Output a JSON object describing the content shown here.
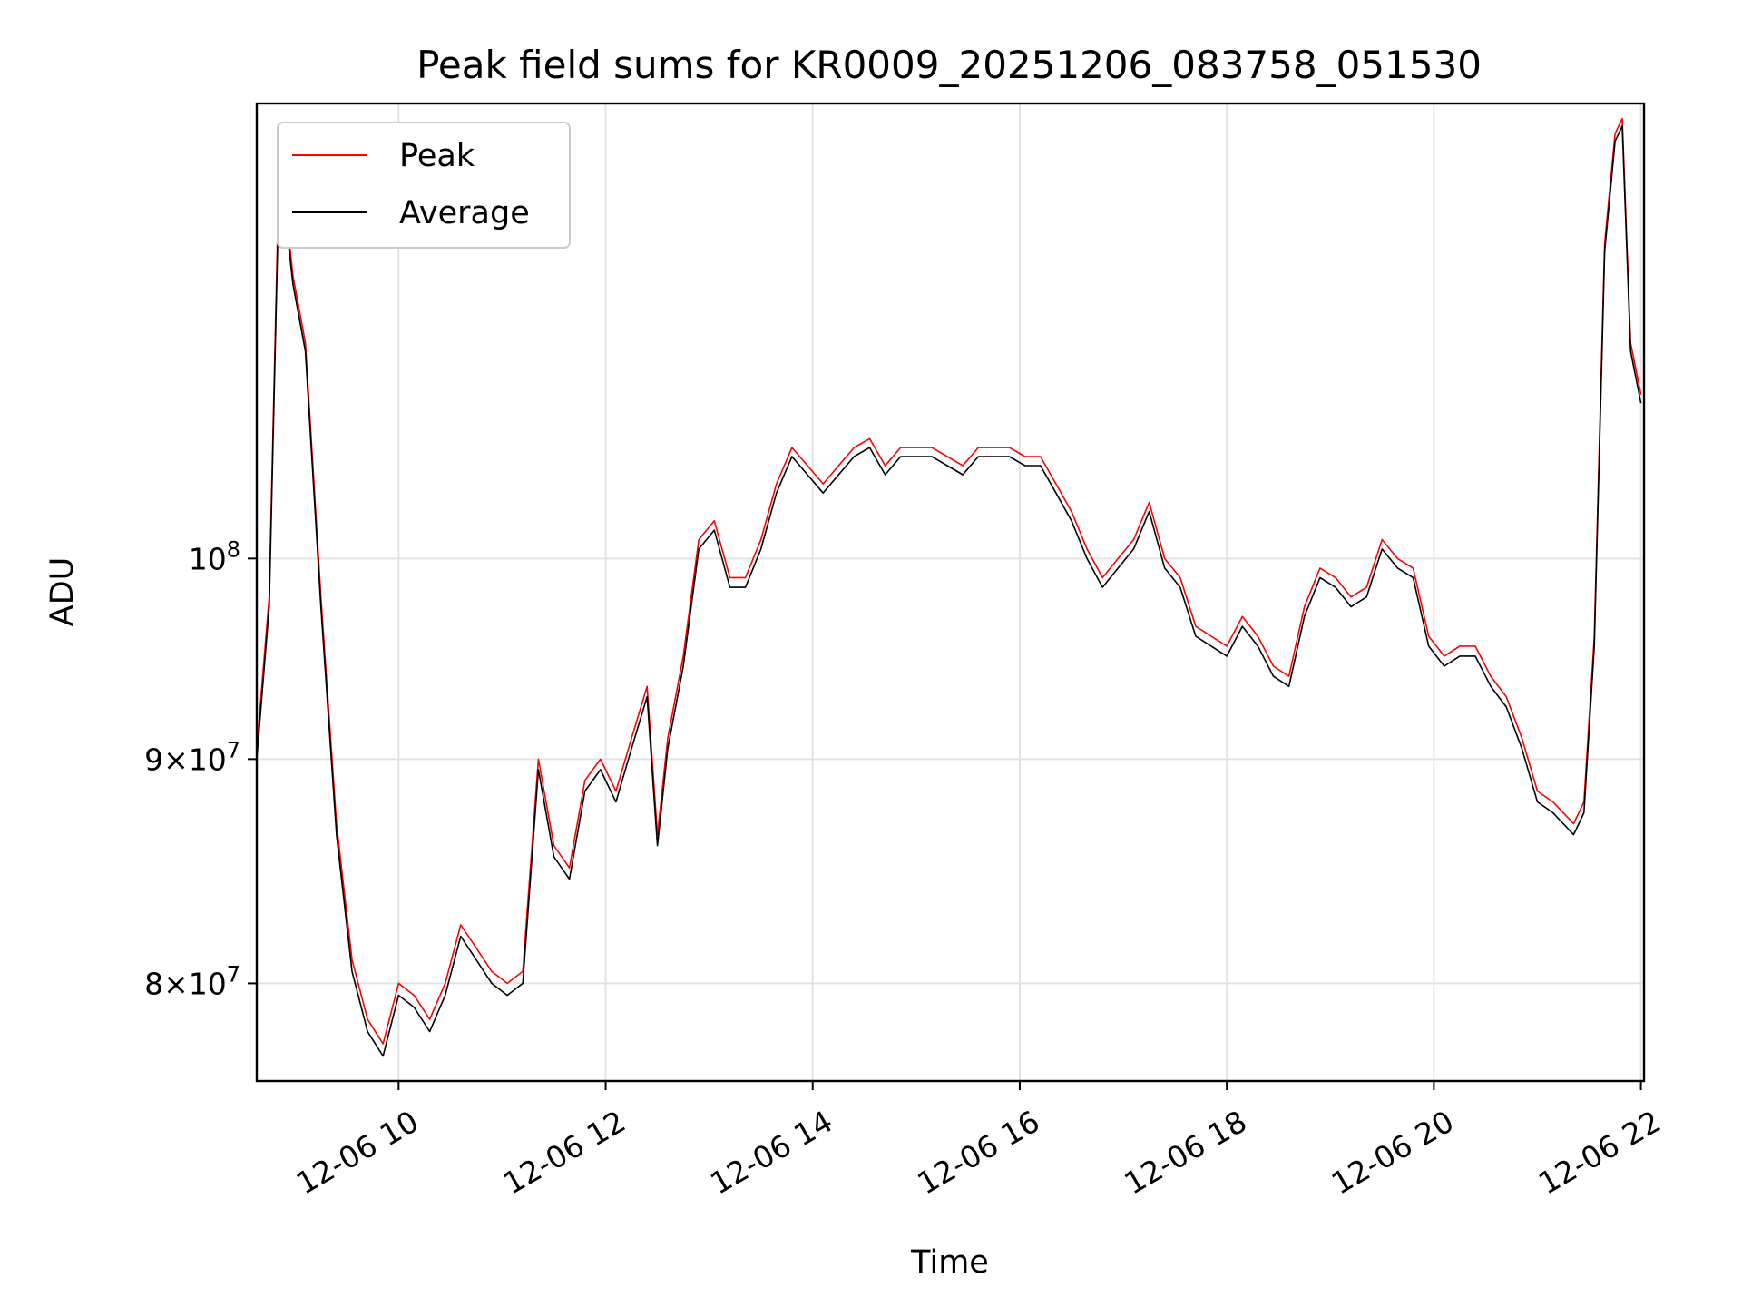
{
  "chart_data": {
    "type": "line",
    "title": "Peak field sums for KR0009_20251206_083758_051530",
    "xlabel": "Time",
    "ylabel": "ADU",
    "yscale": "log",
    "x_unit": "hour of 2025-12-06",
    "xlim": [
      8.63,
      22.03
    ],
    "ylim": [
      76000000,
      127000000
    ],
    "grid": true,
    "legend_position": "upper-left",
    "x_ticks": [
      {
        "value": 10,
        "label": "12-06 10"
      },
      {
        "value": 12,
        "label": "12-06 12"
      },
      {
        "value": 14,
        "label": "12-06 14"
      },
      {
        "value": 16,
        "label": "12-06 16"
      },
      {
        "value": 18,
        "label": "12-06 18"
      },
      {
        "value": 20,
        "label": "12-06 20"
      },
      {
        "value": 22,
        "label": "12-06 22"
      }
    ],
    "y_ticks": [
      {
        "value": 80000000,
        "mantissa": "8",
        "base": "10",
        "exp": "7"
      },
      {
        "value": 90000000,
        "mantissa": "9",
        "base": "10",
        "exp": "7"
      },
      {
        "value": 100000000,
        "mantissa": "",
        "base": "10",
        "exp": "8"
      }
    ],
    "x": [
      8.63,
      8.75,
      8.85,
      8.98,
      9.1,
      9.25,
      9.4,
      9.55,
      9.7,
      9.85,
      10.0,
      10.15,
      10.3,
      10.45,
      10.6,
      10.75,
      10.9,
      11.05,
      11.2,
      11.35,
      11.5,
      11.65,
      11.8,
      11.95,
      12.1,
      12.25,
      12.4,
      12.5,
      12.6,
      12.75,
      12.9,
      13.05,
      13.2,
      13.35,
      13.5,
      13.65,
      13.8,
      13.95,
      14.1,
      14.25,
      14.4,
      14.55,
      14.7,
      14.85,
      15.0,
      15.15,
      15.3,
      15.45,
      15.6,
      15.75,
      15.9,
      16.05,
      16.2,
      16.35,
      16.5,
      16.65,
      16.8,
      16.95,
      17.1,
      17.25,
      17.4,
      17.55,
      17.7,
      17.85,
      18.0,
      18.15,
      18.3,
      18.45,
      18.6,
      18.75,
      18.9,
      19.05,
      19.2,
      19.35,
      19.5,
      19.65,
      19.8,
      19.95,
      20.1,
      20.25,
      20.4,
      20.55,
      20.7,
      20.85,
      21.0,
      21.15,
      21.25,
      21.35,
      21.45,
      21.55,
      21.65,
      21.75,
      21.82,
      21.9,
      22.0
    ],
    "series": [
      {
        "name": "Peak",
        "color": "#ff0000",
        "values": [
          90500000,
          98000000,
          124000000,
          116000000,
          112000000,
          98000000,
          87000000,
          81000000,
          78500000,
          77500000,
          80000000,
          79500000,
          78500000,
          80000000,
          82500000,
          81500000,
          80500000,
          80000000,
          80500000,
          90000000,
          86000000,
          85000000,
          89000000,
          90000000,
          88500000,
          91000000,
          93500000,
          86500000,
          91000000,
          95000000,
          101000000,
          102000000,
          99000000,
          99000000,
          101000000,
          104000000,
          106000000,
          105000000,
          104000000,
          105000000,
          106000000,
          106500000,
          105000000,
          106000000,
          106000000,
          106000000,
          105500000,
          105000000,
          106000000,
          106000000,
          106000000,
          105500000,
          105500000,
          104000000,
          102500000,
          100500000,
          99000000,
          100000000,
          101000000,
          103000000,
          100000000,
          99000000,
          96500000,
          96000000,
          95500000,
          97000000,
          96000000,
          94500000,
          94000000,
          97500000,
          99500000,
          99000000,
          98000000,
          98500000,
          101000000,
          100000000,
          99500000,
          96000000,
          95000000,
          95500000,
          95500000,
          94000000,
          93000000,
          91000000,
          88500000,
          88000000,
          87500000,
          87000000,
          88000000,
          96000000,
          118000000,
          125000000,
          126000000,
          112000000,
          109000000
        ]
      },
      {
        "name": "Average",
        "color": "#000000",
        "values": [
          90000000,
          97500000,
          123000000,
          115500000,
          111500000,
          97500000,
          86500000,
          80500000,
          78000000,
          77000000,
          79500000,
          79000000,
          78000000,
          79500000,
          82000000,
          81000000,
          80000000,
          79500000,
          80000000,
          89500000,
          85500000,
          84500000,
          88500000,
          89500000,
          88000000,
          90500000,
          93000000,
          86000000,
          90500000,
          94500000,
          100500000,
          101500000,
          98500000,
          98500000,
          100500000,
          103500000,
          105500000,
          104500000,
          103500000,
          104500000,
          105500000,
          106000000,
          104500000,
          105500000,
          105500000,
          105500000,
          105000000,
          104500000,
          105500000,
          105500000,
          105500000,
          105000000,
          105000000,
          103500000,
          102000000,
          100000000,
          98500000,
          99500000,
          100500000,
          102500000,
          99500000,
          98500000,
          96000000,
          95500000,
          95000000,
          96500000,
          95500000,
          94000000,
          93500000,
          97000000,
          99000000,
          98500000,
          97500000,
          98000000,
          100500000,
          99500000,
          99000000,
          95500000,
          94500000,
          95000000,
          95000000,
          93500000,
          92500000,
          90500000,
          88000000,
          87500000,
          87000000,
          86500000,
          87500000,
          95500000,
          117500000,
          124500000,
          125500000,
          111500000,
          108500000
        ]
      }
    ]
  }
}
